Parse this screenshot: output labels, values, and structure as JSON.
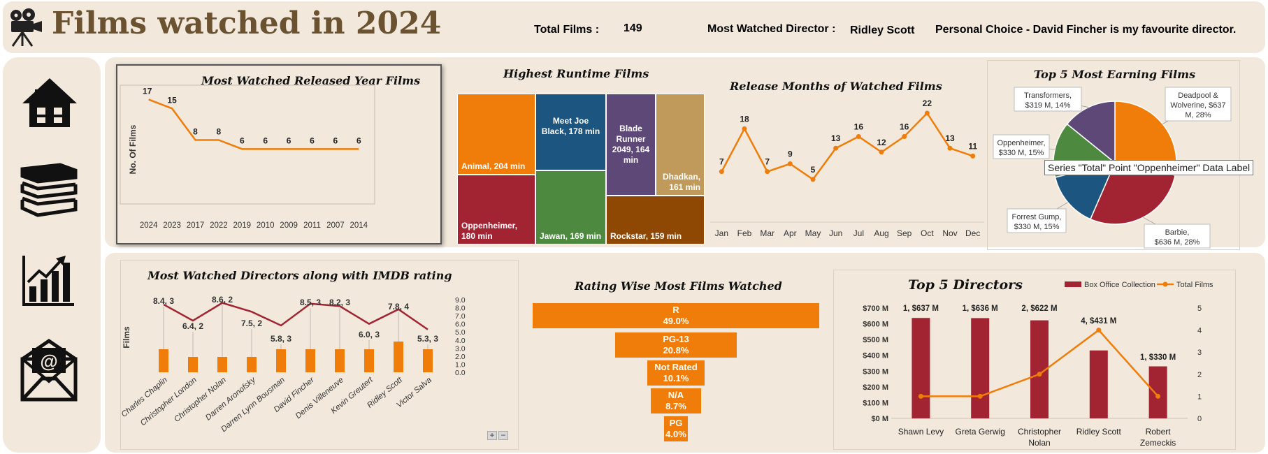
{
  "header": {
    "title": "Films watched in 2024",
    "total_films_label": "Total Films :",
    "total_films_value": "149",
    "most_watched_director_label": "Most Watched Director :",
    "most_watched_director_value": "Ridley Scott",
    "personal_choice": "Personal Choice - David Fincher is my favourite director."
  },
  "sidebar": {
    "items": [
      {
        "icon": "home-icon"
      },
      {
        "icon": "books-icon"
      },
      {
        "icon": "bar-chart-icon"
      },
      {
        "icon": "email-icon"
      }
    ]
  },
  "tooltip": "Series \"Total\" Point \"Oppenheimer\" Data Label",
  "colors": {
    "orange": "#f07c0a",
    "crimson": "#a22433",
    "navy": "#1c5680",
    "green": "#4d8a3f",
    "purple": "#5e4878",
    "tan": "#c09a5a",
    "brown": "#8e4804",
    "panel": "#f2e9dc",
    "title_brown": "#6b5230"
  },
  "chart_data": [
    {
      "id": "release_year",
      "type": "line",
      "title": "Most Watched Released Year Films",
      "ylabel": "No. Of Films",
      "categories": [
        "2024",
        "2023",
        "2017",
        "2022",
        "2019",
        "2010",
        "2009",
        "2011",
        "2007",
        "2014"
      ],
      "values": [
        17,
        15,
        8,
        8,
        6,
        6,
        6,
        6,
        6,
        6
      ],
      "ylim": [
        0,
        18
      ]
    },
    {
      "id": "runtime",
      "type": "treemap",
      "title": "Highest Runtime Films",
      "items": [
        {
          "label": "Animal, 204 min",
          "value": 204
        },
        {
          "label": "Oppenheimer, 180 min",
          "value": 180
        },
        {
          "label": "Meet Joe Black, 178 min",
          "value": 178
        },
        {
          "label": "Jawan, 169 min",
          "value": 169
        },
        {
          "label": "Blade Runner 2049, 164 min",
          "value": 164
        },
        {
          "label": "Dhadkan, 161 min",
          "value": 161
        },
        {
          "label": "Rockstar, 159 min",
          "value": 159
        }
      ]
    },
    {
      "id": "release_months",
      "type": "line",
      "title": "Release Months of Watched Films",
      "categories": [
        "Jan",
        "Feb",
        "Mar",
        "Apr",
        "May",
        "Jun",
        "Jul",
        "Aug",
        "Sep",
        "Oct",
        "Nov",
        "Dec"
      ],
      "values": [
        7,
        18,
        7,
        9,
        5,
        13,
        16,
        12,
        16,
        22,
        13,
        11
      ],
      "ylim": [
        0,
        24
      ]
    },
    {
      "id": "top_earning",
      "type": "pie",
      "title": "Top 5 Most Earning Films",
      "slices": [
        {
          "label": "Deadpool & Wolverine, $637 M, 28%",
          "value": 637
        },
        {
          "label": "Barbie, $636 M, 28%",
          "value": 636
        },
        {
          "label": "Forrest Gump, $330 M, 15%",
          "value": 330
        },
        {
          "label": "Oppenheimer, $330 M, 15%",
          "value": 330
        },
        {
          "label": "Transformers, $319 M, 14%",
          "value": 319
        }
      ]
    },
    {
      "id": "directors_imdb",
      "type": "bar",
      "title": "Most Watched Directors along with IMDB rating",
      "ylabel": "Films",
      "categories": [
        "Charles Chaplin",
        "Christopher London",
        "Christopher Nolan",
        "Darren Aronofsky",
        "Darren Lynn Bousman",
        "David Fincher",
        "Denis Villeneuve",
        "Kevin Greutert",
        "Ridley Scott",
        "Victor Salva"
      ],
      "series": [
        {
          "values": [
            3,
            2,
            2,
            2,
            3,
            3,
            3,
            3,
            4,
            3
          ]
        },
        {
          "values": [
            8.4,
            6.4,
            8.6,
            7.5,
            5.8,
            8.5,
            8.2,
            6.0,
            7.8,
            5.3
          ]
        }
      ],
      "point_labels": [
        "8.4, 3",
        "6.4, 2",
        "8.6, 2",
        "7.5, 2",
        "5.8, 3",
        "8.5, 3",
        "8.2, 3",
        "6.0, 3",
        "7.8, 4",
        "5.3, 3"
      ],
      "y2_ticks": [
        "0.0",
        "1.0",
        "2.0",
        "3.0",
        "4.0",
        "5.0",
        "6.0",
        "7.0",
        "8.0",
        "9.0"
      ],
      "y2lim": [
        0,
        9
      ],
      "zoom_plus": "+",
      "zoom_minus": "−"
    },
    {
      "id": "rating",
      "type": "funnel",
      "title": "Rating Wise Most Films Watched",
      "items": [
        {
          "label": "R",
          "pct": "49.0%",
          "value": 49.0
        },
        {
          "label": "PG-13",
          "pct": "20.8%",
          "value": 20.8
        },
        {
          "label": "Not Rated",
          "pct": "10.1%",
          "value": 10.1
        },
        {
          "label": "N/A",
          "pct": "8.7%",
          "value": 8.7
        },
        {
          "label": "PG",
          "pct": "4.0%",
          "value": 4.0
        }
      ]
    },
    {
      "id": "top_directors",
      "type": "bar",
      "title": "Top 5 Directors",
      "categories": [
        "Shawn Levy",
        "Greta Gerwig",
        "Christopher Nolan",
        "Ridley Scott",
        "Robert Zemeckis"
      ],
      "series": [
        {
          "name": "Box Office Collection",
          "values": [
            637,
            636,
            622,
            431,
            330
          ]
        },
        {
          "name": "Total Films",
          "values": [
            1,
            1,
            2,
            4,
            1
          ]
        }
      ],
      "data_labels": [
        "1, $637 M",
        "1, $636 M",
        "2, $622 M",
        "4, $431 M",
        "1, $330 M"
      ],
      "y_ticks": [
        "$0 M",
        "$100 M",
        "$200 M",
        "$300 M",
        "$400 M",
        "$500 M",
        "$600 M",
        "$700 M"
      ],
      "y2_ticks": [
        "0",
        "1",
        "2",
        "3",
        "4",
        "5"
      ],
      "ylim": [
        0,
        700
      ],
      "y2lim": [
        0,
        5
      ]
    }
  ]
}
